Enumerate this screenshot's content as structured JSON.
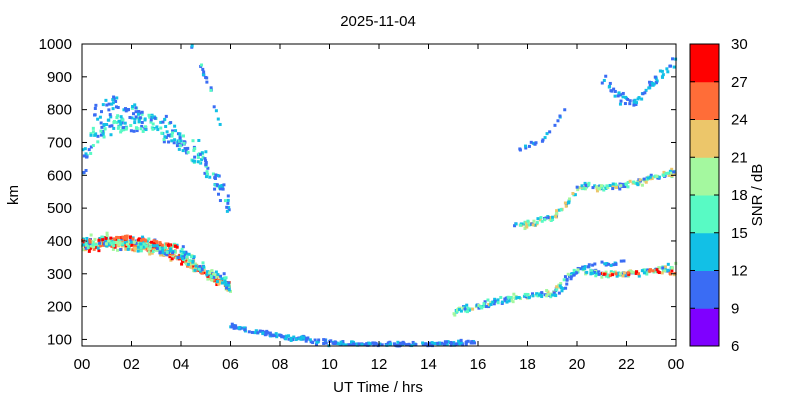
{
  "chart_data": {
    "type": "heatmap",
    "title": "2025-11-04",
    "xlabel": "UT Time / hrs",
    "ylabel": "km",
    "xlim": [
      0,
      24
    ],
    "ylim": [
      80,
      1000
    ],
    "x_ticks": [
      "00",
      "02",
      "04",
      "06",
      "08",
      "10",
      "12",
      "14",
      "16",
      "18",
      "20",
      "22",
      "00"
    ],
    "x_tick_values": [
      0,
      2,
      4,
      6,
      8,
      10,
      12,
      14,
      16,
      18,
      20,
      22,
      24
    ],
    "y_ticks": [
      "100",
      "200",
      "300",
      "400",
      "500",
      "600",
      "700",
      "800",
      "900",
      "1000"
    ],
    "y_tick_values": [
      100,
      200,
      300,
      400,
      500,
      600,
      700,
      800,
      900,
      1000
    ],
    "colorbar": {
      "label": "SNR / dB",
      "range": [
        6,
        30
      ],
      "ticks": [
        "6",
        "9",
        "12",
        "15",
        "18",
        "21",
        "24",
        "27",
        "30"
      ],
      "tick_values": [
        6,
        9,
        12,
        15,
        18,
        21,
        24,
        27,
        30
      ],
      "colors": [
        "#7f00ff",
        "#3a6cf4",
        "#12c0e6",
        "#58fac4",
        "#a4f89f",
        "#ecc66a",
        "#ff6d38",
        "#ff0000"
      ]
    },
    "traces": [
      {
        "points": [
          [
            0,
            380
          ],
          [
            1,
            395
          ],
          [
            2,
            385
          ],
          [
            3,
            375
          ],
          [
            4,
            350
          ],
          [
            5,
            300
          ],
          [
            6,
            260
          ]
        ],
        "spread": 22,
        "snr": [
          18,
          30
        ],
        "density": 60
      },
      {
        "points": [
          [
            0,
            390
          ],
          [
            1,
            400
          ],
          [
            2,
            395
          ],
          [
            3,
            385
          ],
          [
            4,
            360
          ],
          [
            5,
            310
          ],
          [
            6,
            265
          ]
        ],
        "spread": 30,
        "snr": [
          10,
          20
        ],
        "density": 40
      },
      {
        "points": [
          [
            0,
            620
          ],
          [
            0.4,
            720
          ],
          [
            1,
            750
          ],
          [
            2,
            760
          ],
          [
            3,
            760
          ],
          [
            4,
            700
          ],
          [
            5,
            640
          ],
          [
            6,
            500
          ]
        ],
        "spread": 60,
        "snr": [
          9,
          18
        ],
        "density": 40
      },
      {
        "points": [
          [
            0.5,
            780
          ],
          [
            1,
            820
          ],
          [
            2,
            800
          ],
          [
            3,
            770
          ]
        ],
        "spread": 40,
        "snr": [
          9,
          14
        ],
        "density": 15
      },
      {
        "points": [
          [
            4.4,
            1000
          ],
          [
            5,
            900
          ],
          [
            5.6,
            760
          ]
        ],
        "spread": 20,
        "snr": [
          9,
          16
        ],
        "density": 15
      },
      {
        "points": [
          [
            6,
            140
          ],
          [
            8,
            110
          ],
          [
            10,
            90
          ],
          [
            12,
            85
          ],
          [
            14,
            85
          ],
          [
            16,
            90
          ]
        ],
        "spread": 12,
        "snr": [
          9,
          14
        ],
        "density": 25
      },
      {
        "points": [
          [
            15,
            185
          ],
          [
            16,
            200
          ],
          [
            17,
            220
          ],
          [
            18,
            230
          ],
          [
            19,
            240
          ],
          [
            19.5,
            280
          ],
          [
            20,
            310
          ],
          [
            21,
            300
          ],
          [
            22,
            300
          ],
          [
            23,
            310
          ],
          [
            24,
            320
          ]
        ],
        "spread": 15,
        "snr": [
          9,
          22
        ],
        "density": 28
      },
      {
        "points": [
          [
            19,
            230
          ],
          [
            19.5,
            260
          ],
          [
            20,
            310
          ],
          [
            20.8,
            330
          ],
          [
            21.5,
            330
          ],
          [
            22,
            340
          ]
        ],
        "spread": 10,
        "snr": [
          9,
          14
        ],
        "density": 12
      },
      {
        "points": [
          [
            17.5,
            450
          ],
          [
            18,
            450
          ],
          [
            19,
            470
          ],
          [
            19.5,
            500
          ],
          [
            20,
            560
          ],
          [
            20.5,
            570
          ],
          [
            21,
            560
          ],
          [
            22,
            570
          ],
          [
            23,
            590
          ],
          [
            24,
            610
          ]
        ],
        "spread": 14,
        "snr": [
          9,
          24
        ],
        "density": 28
      },
      {
        "points": [
          [
            17.5,
            680
          ],
          [
            18.5,
            700
          ],
          [
            19,
            740
          ],
          [
            19.5,
            800
          ]
        ],
        "spread": 10,
        "snr": [
          9,
          15
        ],
        "density": 10
      },
      {
        "points": [
          [
            21,
            900
          ],
          [
            22,
            820
          ],
          [
            22.5,
            830
          ],
          [
            23,
            880
          ],
          [
            24,
            950
          ]
        ],
        "spread": 25,
        "snr": [
          9,
          15
        ],
        "density": 22
      },
      {
        "points": [
          [
            21,
            300
          ],
          [
            22,
            300
          ],
          [
            23,
            310
          ],
          [
            24,
            300
          ]
        ],
        "spread": 10,
        "snr": [
          22,
          30
        ],
        "density": 10
      },
      {
        "points": [
          [
            0,
            400
          ],
          [
            2,
            410
          ],
          [
            4,
            380
          ]
        ],
        "spread": 8,
        "snr": [
          24,
          30
        ],
        "density": 12
      }
    ]
  }
}
